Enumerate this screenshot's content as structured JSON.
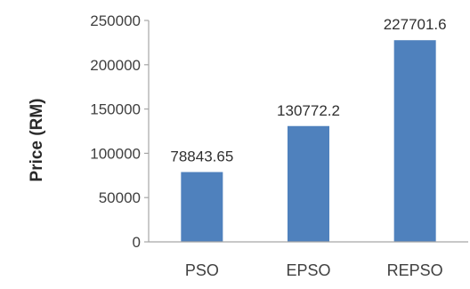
{
  "chart_data": {
    "type": "bar",
    "categories": [
      "PSO",
      "EPSO",
      "REPSO"
    ],
    "values": [
      78843.65,
      130772.2,
      227701.6
    ],
    "value_labels": [
      "78843.65",
      "130772.2",
      "227701.6"
    ],
    "title": "",
    "xlabel": "",
    "ylabel": "Price (RM)",
    "ylim": [
      0,
      250000
    ],
    "yticks": [
      0,
      50000,
      100000,
      150000,
      200000,
      250000
    ],
    "ytick_labels": [
      "0",
      "50000",
      "100000",
      "150000",
      "200000",
      "250000"
    ],
    "grid": false,
    "legend": "none",
    "bar_color": "#4f81bd",
    "axis_color": "#a6a6a6"
  }
}
